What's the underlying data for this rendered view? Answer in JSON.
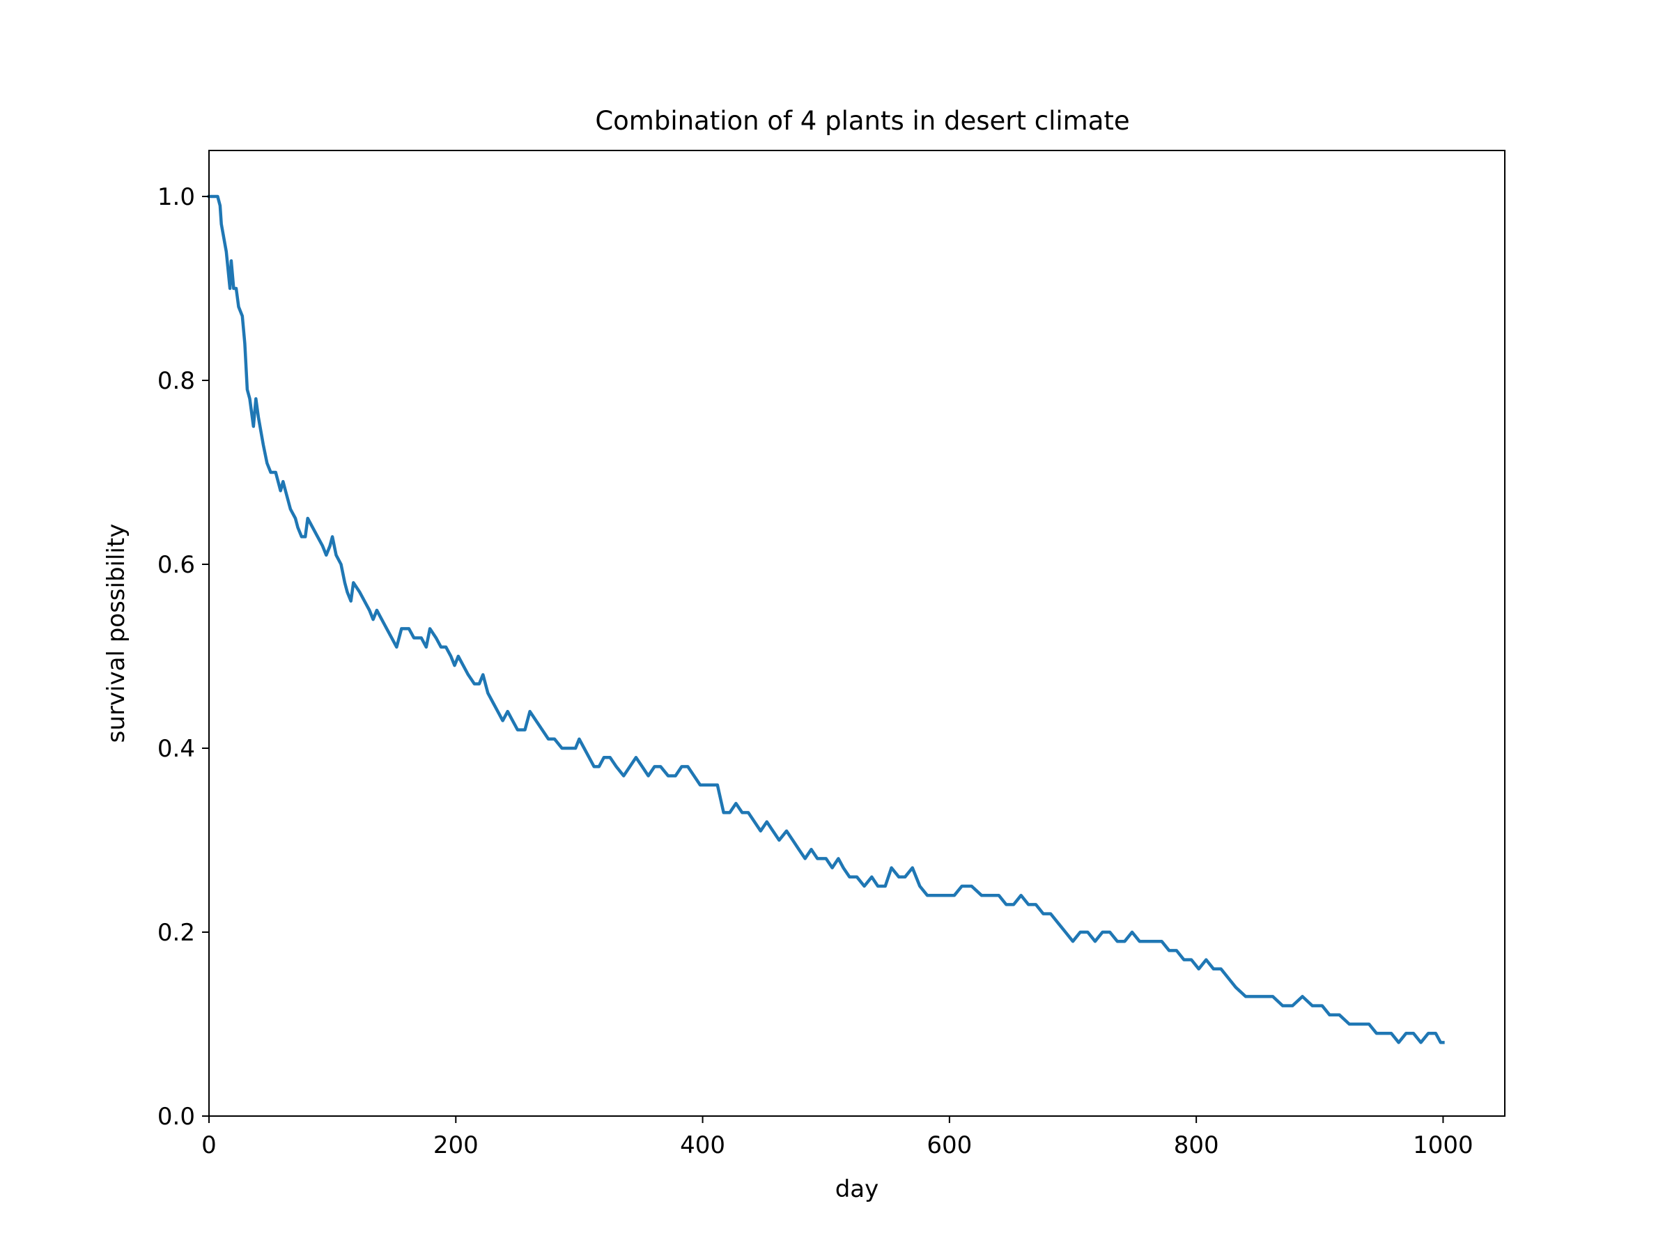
{
  "chart_data": {
    "type": "line",
    "title": "Combination of 4 plants in desert climate",
    "xlabel": "day",
    "ylabel": "survival possibility",
    "xlim": [
      0,
      1050
    ],
    "ylim": [
      0.0,
      1.05
    ],
    "xticks": [
      0,
      200,
      400,
      600,
      800,
      1000
    ],
    "xtick_labels": [
      "0",
      "200",
      "400",
      "600",
      "800",
      "1000"
    ],
    "yticks": [
      0.0,
      0.2,
      0.4,
      0.6,
      0.8,
      1.0
    ],
    "ytick_labels": [
      "0.0",
      "0.2",
      "0.4",
      "0.6",
      "0.8",
      "1.0"
    ],
    "grid": false,
    "legend": false,
    "colors": {
      "line": "#1f77b4",
      "axes": "#000000",
      "background": "#ffffff"
    },
    "series": [
      {
        "points": [
          [
            0,
            1.0
          ],
          [
            7,
            1.0
          ],
          [
            9,
            0.99
          ],
          [
            10,
            0.97
          ],
          [
            14,
            0.94
          ],
          [
            17,
            0.9
          ],
          [
            18,
            0.93
          ],
          [
            20,
            0.9
          ],
          [
            22,
            0.9
          ],
          [
            24,
            0.88
          ],
          [
            27,
            0.87
          ],
          [
            29,
            0.84
          ],
          [
            31,
            0.79
          ],
          [
            33,
            0.78
          ],
          [
            36,
            0.75
          ],
          [
            38,
            0.78
          ],
          [
            40,
            0.76
          ],
          [
            44,
            0.73
          ],
          [
            47,
            0.71
          ],
          [
            50,
            0.7
          ],
          [
            54,
            0.7
          ],
          [
            56,
            0.69
          ],
          [
            58,
            0.68
          ],
          [
            60,
            0.69
          ],
          [
            62,
            0.68
          ],
          [
            66,
            0.66
          ],
          [
            70,
            0.65
          ],
          [
            72,
            0.64
          ],
          [
            75,
            0.63
          ],
          [
            78,
            0.63
          ],
          [
            80,
            0.65
          ],
          [
            84,
            0.64
          ],
          [
            88,
            0.63
          ],
          [
            92,
            0.62
          ],
          [
            95,
            0.61
          ],
          [
            98,
            0.62
          ],
          [
            100,
            0.63
          ],
          [
            103,
            0.61
          ],
          [
            107,
            0.6
          ],
          [
            110,
            0.58
          ],
          [
            112,
            0.57
          ],
          [
            115,
            0.56
          ],
          [
            117,
            0.58
          ],
          [
            122,
            0.57
          ],
          [
            126,
            0.56
          ],
          [
            130,
            0.55
          ],
          [
            133,
            0.54
          ],
          [
            136,
            0.55
          ],
          [
            140,
            0.54
          ],
          [
            144,
            0.53
          ],
          [
            148,
            0.52
          ],
          [
            152,
            0.51
          ],
          [
            156,
            0.53
          ],
          [
            162,
            0.53
          ],
          [
            166,
            0.52
          ],
          [
            172,
            0.52
          ],
          [
            176,
            0.51
          ],
          [
            179,
            0.53
          ],
          [
            184,
            0.52
          ],
          [
            188,
            0.51
          ],
          [
            192,
            0.51
          ],
          [
            196,
            0.5
          ],
          [
            199,
            0.49
          ],
          [
            202,
            0.5
          ],
          [
            206,
            0.49
          ],
          [
            210,
            0.48
          ],
          [
            215,
            0.47
          ],
          [
            219,
            0.47
          ],
          [
            222,
            0.48
          ],
          [
            226,
            0.46
          ],
          [
            230,
            0.45
          ],
          [
            234,
            0.44
          ],
          [
            238,
            0.43
          ],
          [
            242,
            0.44
          ],
          [
            246,
            0.43
          ],
          [
            250,
            0.42
          ],
          [
            256,
            0.42
          ],
          [
            260,
            0.44
          ],
          [
            265,
            0.43
          ],
          [
            270,
            0.42
          ],
          [
            275,
            0.41
          ],
          [
            280,
            0.41
          ],
          [
            286,
            0.4
          ],
          [
            292,
            0.4
          ],
          [
            297,
            0.4
          ],
          [
            300,
            0.41
          ],
          [
            304,
            0.4
          ],
          [
            308,
            0.39
          ],
          [
            312,
            0.38
          ],
          [
            316,
            0.38
          ],
          [
            320,
            0.39
          ],
          [
            325,
            0.39
          ],
          [
            330,
            0.38
          ],
          [
            336,
            0.37
          ],
          [
            341,
            0.38
          ],
          [
            346,
            0.39
          ],
          [
            351,
            0.38
          ],
          [
            356,
            0.37
          ],
          [
            361,
            0.38
          ],
          [
            366,
            0.38
          ],
          [
            372,
            0.37
          ],
          [
            378,
            0.37
          ],
          [
            383,
            0.38
          ],
          [
            388,
            0.38
          ],
          [
            393,
            0.37
          ],
          [
            398,
            0.36
          ],
          [
            407,
            0.36
          ],
          [
            412,
            0.36
          ],
          [
            417,
            0.33
          ],
          [
            422,
            0.33
          ],
          [
            427,
            0.34
          ],
          [
            432,
            0.33
          ],
          [
            437,
            0.33
          ],
          [
            442,
            0.32
          ],
          [
            447,
            0.31
          ],
          [
            452,
            0.32
          ],
          [
            457,
            0.31
          ],
          [
            462,
            0.3
          ],
          [
            468,
            0.31
          ],
          [
            473,
            0.3
          ],
          [
            478,
            0.29
          ],
          [
            483,
            0.28
          ],
          [
            488,
            0.29
          ],
          [
            493,
            0.28
          ],
          [
            500,
            0.28
          ],
          [
            505,
            0.27
          ],
          [
            510,
            0.28
          ],
          [
            514,
            0.27
          ],
          [
            519,
            0.26
          ],
          [
            525,
            0.26
          ],
          [
            531,
            0.25
          ],
          [
            537,
            0.26
          ],
          [
            542,
            0.25
          ],
          [
            548,
            0.25
          ],
          [
            553,
            0.27
          ],
          [
            559,
            0.26
          ],
          [
            564,
            0.26
          ],
          [
            570,
            0.27
          ],
          [
            576,
            0.25
          ],
          [
            582,
            0.24
          ],
          [
            590,
            0.24
          ],
          [
            598,
            0.24
          ],
          [
            604,
            0.24
          ],
          [
            610,
            0.25
          ],
          [
            618,
            0.25
          ],
          [
            626,
            0.24
          ],
          [
            634,
            0.24
          ],
          [
            640,
            0.24
          ],
          [
            646,
            0.23
          ],
          [
            652,
            0.23
          ],
          [
            658,
            0.24
          ],
          [
            664,
            0.23
          ],
          [
            670,
            0.23
          ],
          [
            676,
            0.22
          ],
          [
            682,
            0.22
          ],
          [
            688,
            0.21
          ],
          [
            694,
            0.2
          ],
          [
            700,
            0.19
          ],
          [
            706,
            0.2
          ],
          [
            712,
            0.2
          ],
          [
            718,
            0.19
          ],
          [
            724,
            0.2
          ],
          [
            730,
            0.2
          ],
          [
            736,
            0.19
          ],
          [
            742,
            0.19
          ],
          [
            748,
            0.2
          ],
          [
            754,
            0.19
          ],
          [
            760,
            0.19
          ],
          [
            766,
            0.19
          ],
          [
            772,
            0.19
          ],
          [
            778,
            0.18
          ],
          [
            784,
            0.18
          ],
          [
            790,
            0.17
          ],
          [
            796,
            0.17
          ],
          [
            802,
            0.16
          ],
          [
            808,
            0.17
          ],
          [
            814,
            0.16
          ],
          [
            820,
            0.16
          ],
          [
            826,
            0.15
          ],
          [
            832,
            0.14
          ],
          [
            840,
            0.13
          ],
          [
            848,
            0.13
          ],
          [
            856,
            0.13
          ],
          [
            862,
            0.13
          ],
          [
            870,
            0.12
          ],
          [
            878,
            0.12
          ],
          [
            886,
            0.13
          ],
          [
            894,
            0.12
          ],
          [
            902,
            0.12
          ],
          [
            908,
            0.11
          ],
          [
            916,
            0.11
          ],
          [
            924,
            0.1
          ],
          [
            932,
            0.1
          ],
          [
            940,
            0.1
          ],
          [
            946,
            0.09
          ],
          [
            952,
            0.09
          ],
          [
            958,
            0.09
          ],
          [
            964,
            0.08
          ],
          [
            970,
            0.09
          ],
          [
            976,
            0.09
          ],
          [
            982,
            0.08
          ],
          [
            988,
            0.09
          ],
          [
            994,
            0.09
          ],
          [
            998,
            0.08
          ],
          [
            1000,
            0.08
          ]
        ]
      }
    ]
  }
}
